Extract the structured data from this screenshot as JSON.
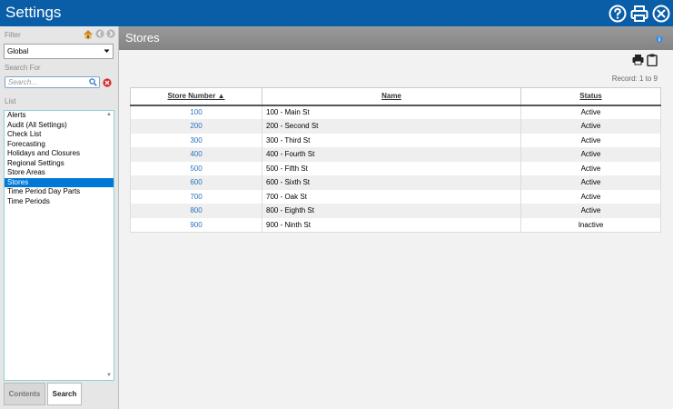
{
  "app": {
    "title": "Settings"
  },
  "filter": {
    "label": "Filter",
    "selected": "Global"
  },
  "search": {
    "label": "Search For",
    "placeholder": "Search..."
  },
  "list": {
    "label": "List",
    "items": [
      {
        "label": "Alerts",
        "selected": false
      },
      {
        "label": "Audit (All Settings)",
        "selected": false
      },
      {
        "label": "Check List",
        "selected": false
      },
      {
        "label": "Forecasting",
        "selected": false
      },
      {
        "label": "Holidays and Closures",
        "selected": false
      },
      {
        "label": "Regional Settings",
        "selected": false
      },
      {
        "label": "Store Areas",
        "selected": false
      },
      {
        "label": "Stores",
        "selected": true
      },
      {
        "label": "Time Period Day Parts",
        "selected": false
      },
      {
        "label": "Time Periods",
        "selected": false
      }
    ]
  },
  "tabs": {
    "contents": "Contents",
    "search": "Search"
  },
  "main": {
    "title": "Stores",
    "record": "Record: 1 to 9",
    "columns": [
      "Store Number ▲",
      "Name",
      "Status"
    ],
    "rows": [
      {
        "number": "100",
        "name": "100 - Main St",
        "status": "Active"
      },
      {
        "number": "200",
        "name": "200 - Second St",
        "status": "Active"
      },
      {
        "number": "300",
        "name": "300 - Third St",
        "status": "Active"
      },
      {
        "number": "400",
        "name": "400 - Fourth St",
        "status": "Active"
      },
      {
        "number": "500",
        "name": "500 - Fifth St",
        "status": "Active"
      },
      {
        "number": "600",
        "name": "600 - Sixth St",
        "status": "Active"
      },
      {
        "number": "700",
        "name": "700 - Oak St",
        "status": "Active"
      },
      {
        "number": "800",
        "name": "800 - Eighth St",
        "status": "Active"
      },
      {
        "number": "900",
        "name": "900 - Ninth St",
        "status": "Inactive"
      }
    ]
  },
  "icons": {
    "help": "help-circle-icon",
    "print": "printer-icon",
    "close": "close-circle-icon",
    "home": "home-icon",
    "clipboard": "clipboard-icon",
    "info": "info-icon"
  },
  "colors": {
    "titlebar": "#0a5ea8",
    "selected": "#0078d7",
    "link": "#2874c0"
  }
}
